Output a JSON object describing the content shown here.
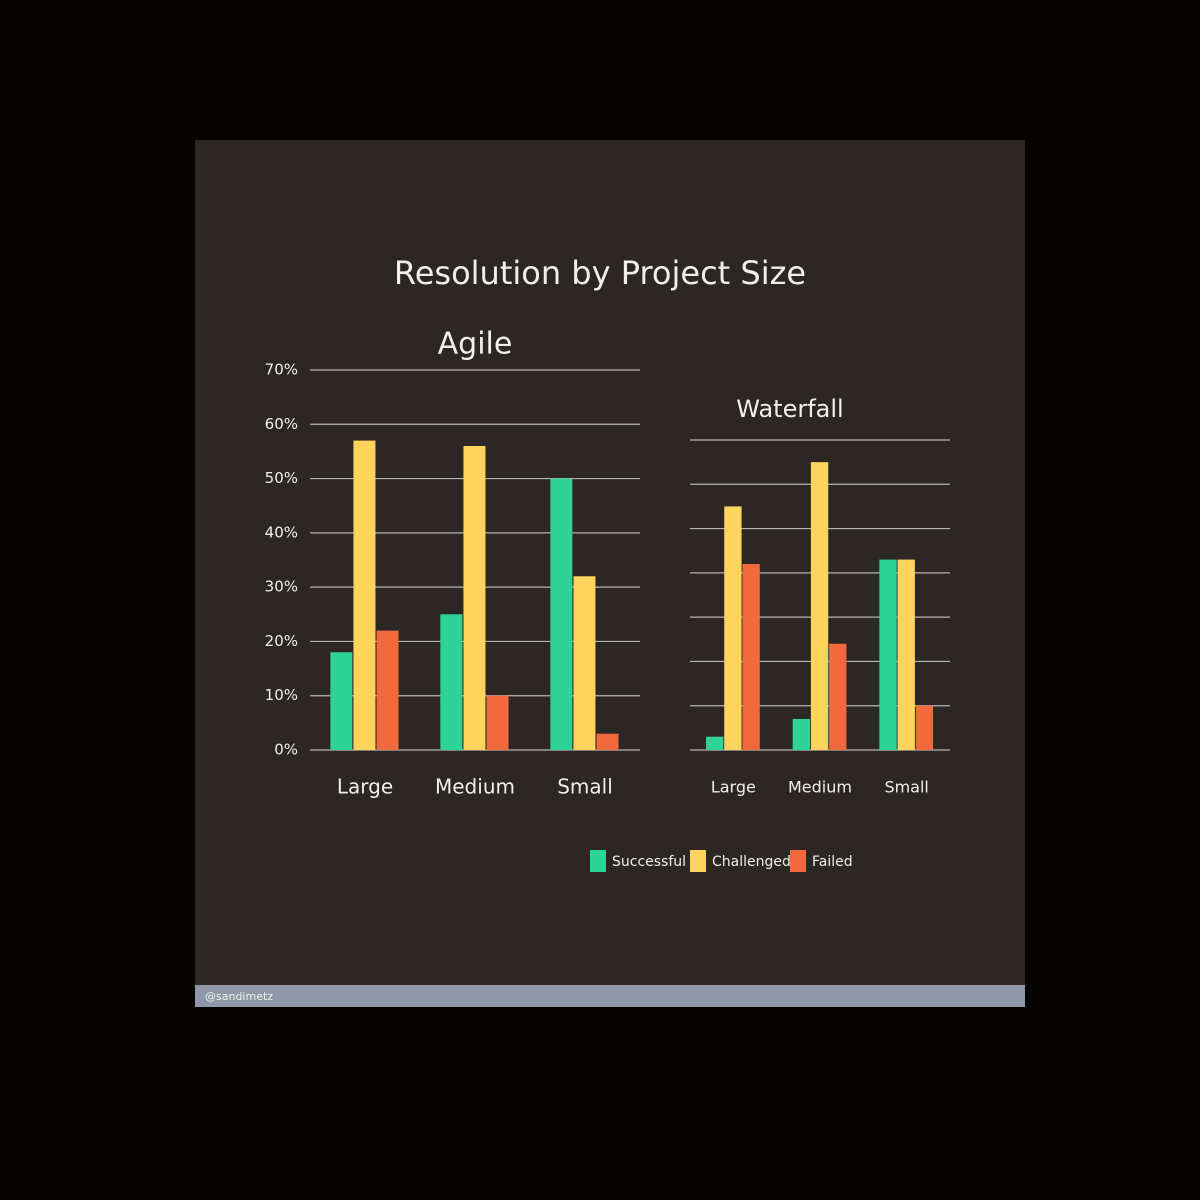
{
  "title": "Resolution by Project Size",
  "footer": "@sandimetz",
  "chart_data": [
    {
      "type": "bar",
      "title": "Agile",
      "categories": [
        "Large",
        "Medium",
        "Small"
      ],
      "series": [
        {
          "name": "Successful",
          "color": "#2fd39a",
          "values": [
            18,
            25,
            50
          ]
        },
        {
          "name": "Challenged",
          "color": "#ffd45c",
          "values": [
            57,
            56,
            32
          ]
        },
        {
          "name": "Failed",
          "color": "#f06a3e",
          "values": [
            22,
            10,
            3
          ]
        }
      ],
      "ylim": [
        0,
        70
      ],
      "yticks": [
        {
          "value": 0,
          "label": "0%"
        },
        {
          "value": 10,
          "label": "10%"
        },
        {
          "value": 20,
          "label": "20%"
        },
        {
          "value": 30,
          "label": "30%"
        },
        {
          "value": 40,
          "label": "40%"
        },
        {
          "value": 50,
          "label": "50%"
        },
        {
          "value": 60,
          "label": "60%"
        },
        {
          "value": 70,
          "label": "70%"
        }
      ],
      "grid": true,
      "tick_labels": true
    },
    {
      "type": "bar",
      "title": "Waterfall",
      "categories": [
        "Large",
        "Medium",
        "Small"
      ],
      "series": [
        {
          "name": "Successful",
          "color": "#2fd39a",
          "values": [
            3,
            7,
            43
          ]
        },
        {
          "name": "Challenged",
          "color": "#ffd45c",
          "values": [
            55,
            65,
            43
          ]
        },
        {
          "name": "Failed",
          "color": "#f06a3e",
          "values": [
            42,
            24,
            10
          ]
        }
      ],
      "ylim": [
        0,
        70
      ],
      "yticks": [
        0,
        10,
        20,
        30,
        40,
        50,
        60,
        70
      ],
      "grid": true,
      "tick_labels": false
    }
  ]
}
